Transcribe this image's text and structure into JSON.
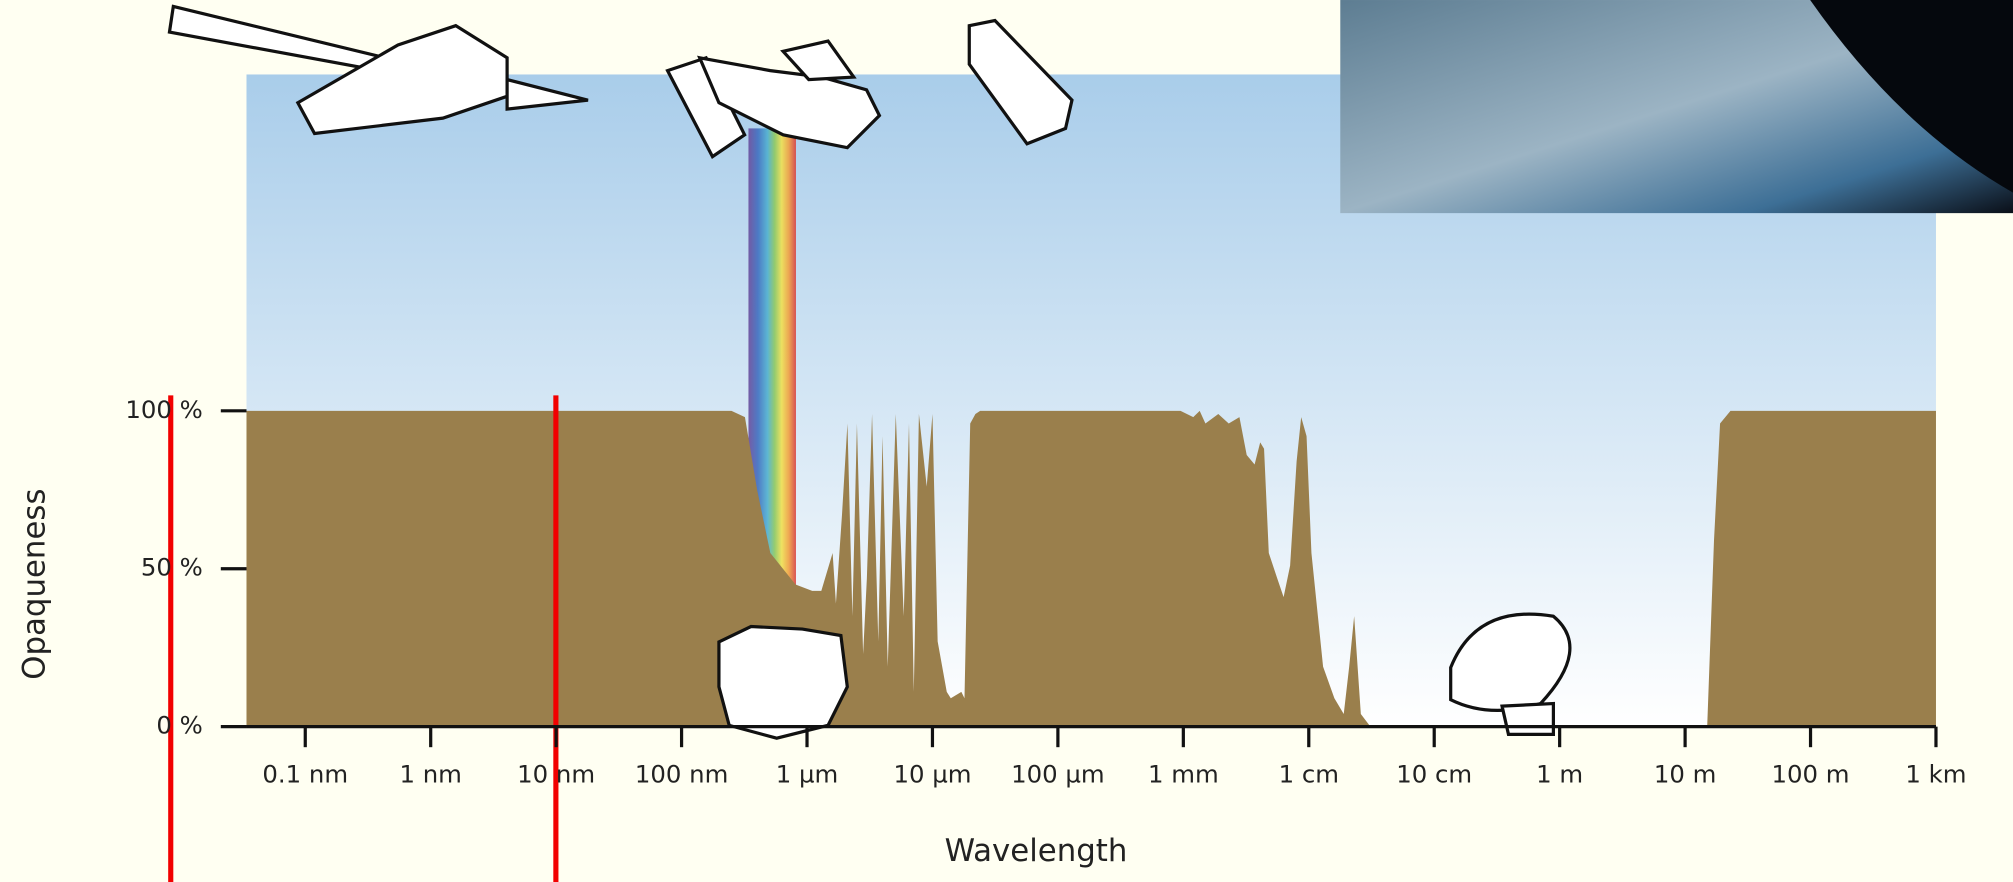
{
  "chart_data": {
    "type": "area",
    "xlabel": "Wavelength",
    "ylabel": "Opaqueness",
    "log_x": true,
    "color": "#9a7f4c",
    "xlim": [
      3.4e-11,
      1000
    ],
    "ylim": [
      0,
      100
    ],
    "xticks": [
      {
        "value": 1e-10,
        "label": "0.1 nm"
      },
      {
        "value": 1e-09,
        "label": "1 nm"
      },
      {
        "value": 1e-08,
        "label": "10 nm"
      },
      {
        "value": 1e-07,
        "label": "100 nm"
      },
      {
        "value": 1e-06,
        "label": "1 µm"
      },
      {
        "value": 1e-05,
        "label": "10 µm"
      },
      {
        "value": 0.0001,
        "label": "100 µm"
      },
      {
        "value": 0.001,
        "label": "1 mm"
      },
      {
        "value": 0.01,
        "label": "1 cm"
      },
      {
        "value": 0.1,
        "label": "10 cm"
      },
      {
        "value": 1,
        "label": "1 m"
      },
      {
        "value": 10,
        "label": "10 m"
      },
      {
        "value": 100,
        "label": "100 m"
      },
      {
        "value": 1000,
        "label": "1 km"
      }
    ],
    "yticks": [
      {
        "value": 0,
        "label": "0 %"
      },
      {
        "value": 50,
        "label": "50 %"
      },
      {
        "value": 100,
        "label": "100 %"
      }
    ],
    "x": [
      3.4e-11,
      2.5e-07,
      3.2e-07,
      4e-07,
      5.1e-07,
      8.1e-07,
      1.1e-06,
      1.3e-06,
      1.6e-06,
      1.7e-06,
      1.9e-06,
      2.1e-06,
      2.3e-06,
      2.5e-06,
      2.8e-06,
      3e-06,
      3.3e-06,
      3.7e-06,
      4e-06,
      4.4e-06,
      5.1e-06,
      5.9e-06,
      6.5e-06,
      7.1e-06,
      7.8e-06,
      9e-06,
      1e-05,
      1.1e-05,
      1.3e-05,
      1.4e-05,
      1.7e-05,
      1.8e-05,
      2e-05,
      2.2e-05,
      2.4e-05,
      0.00095,
      0.0012,
      0.00135,
      0.0015,
      0.0019,
      0.0023,
      0.0028,
      0.0032,
      0.0037,
      0.0041,
      0.0044,
      0.0048,
      0.0056,
      0.0063,
      0.0071,
      0.008,
      0.0087,
      0.0096,
      0.0105,
      0.013,
      0.016,
      0.019,
      0.021,
      0.023,
      0.026,
      0.031,
      15,
      17,
      19,
      23,
      1000
    ],
    "values": [
      100,
      100,
      98,
      75,
      55,
      45,
      43,
      43,
      55,
      39,
      67,
      96,
      35,
      96,
      23,
      47,
      99,
      27,
      92,
      19,
      99,
      35,
      96,
      11,
      99,
      76,
      99,
      27,
      11,
      9,
      11,
      9,
      96,
      99,
      100,
      100,
      98,
      100,
      96,
      99,
      96,
      98,
      86,
      83,
      90,
      88,
      55,
      47,
      41,
      51,
      84,
      98,
      92,
      55,
      19,
      9,
      4,
      19,
      35,
      4,
      0,
      0,
      59,
      96,
      100,
      100
    ]
  }
}
